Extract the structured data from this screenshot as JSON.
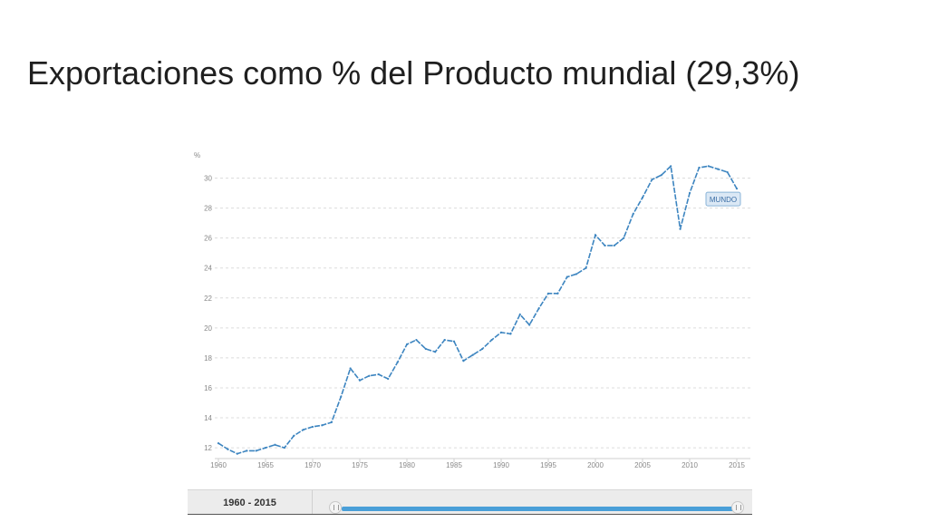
{
  "slide": {
    "title": "Exportaciones como % del Producto mundial (29,3%)"
  },
  "range": {
    "label": "1960 - 2015"
  },
  "colors": {
    "line": "#3d85c0",
    "grid": "#dcdcdc",
    "tick_text": "#888888",
    "tooltip_bg": "#dbe8f5",
    "tooltip_border": "#8ab4d8",
    "range_track": "#4a9fd8"
  },
  "chart_data": {
    "type": "line",
    "ylabel": "%",
    "ylim": [
      11.4,
      31
    ],
    "xlim": [
      1960,
      2015
    ],
    "yticks": [
      12,
      14,
      16,
      18,
      20,
      22,
      24,
      26,
      28,
      30
    ],
    "xticks": [
      1960,
      1965,
      1970,
      1975,
      1980,
      1985,
      1990,
      1995,
      2000,
      2005,
      2010,
      2015
    ],
    "grid": true,
    "series": [
      {
        "name": "MUNDO",
        "x": [
          1960,
          1961,
          1962,
          1963,
          1964,
          1965,
          1966,
          1967,
          1968,
          1969,
          1970,
          1971,
          1972,
          1973,
          1974,
          1975,
          1976,
          1977,
          1978,
          1979,
          1980,
          1981,
          1982,
          1983,
          1984,
          1985,
          1986,
          1987,
          1988,
          1989,
          1990,
          1991,
          1992,
          1993,
          1994,
          1995,
          1996,
          1997,
          1998,
          1999,
          2000,
          2001,
          2002,
          2003,
          2004,
          2005,
          2006,
          2007,
          2008,
          2009,
          2010,
          2011,
          2012,
          2013,
          2014,
          2015
        ],
        "values": [
          12.3,
          11.9,
          11.6,
          11.8,
          11.8,
          12.0,
          12.2,
          12.0,
          12.8,
          13.2,
          13.4,
          13.5,
          13.7,
          15.4,
          17.3,
          16.5,
          16.8,
          16.9,
          16.6,
          17.7,
          18.9,
          19.2,
          18.6,
          18.4,
          19.2,
          19.1,
          17.8,
          18.2,
          18.6,
          19.2,
          19.7,
          19.6,
          20.9,
          20.2,
          21.3,
          22.3,
          22.3,
          23.4,
          23.6,
          24.0,
          26.2,
          25.5,
          25.5,
          26.0,
          27.6,
          28.7,
          29.9,
          30.2,
          30.8,
          26.6,
          29.0,
          30.7,
          30.8,
          30.6,
          30.4,
          29.3
        ]
      }
    ]
  }
}
